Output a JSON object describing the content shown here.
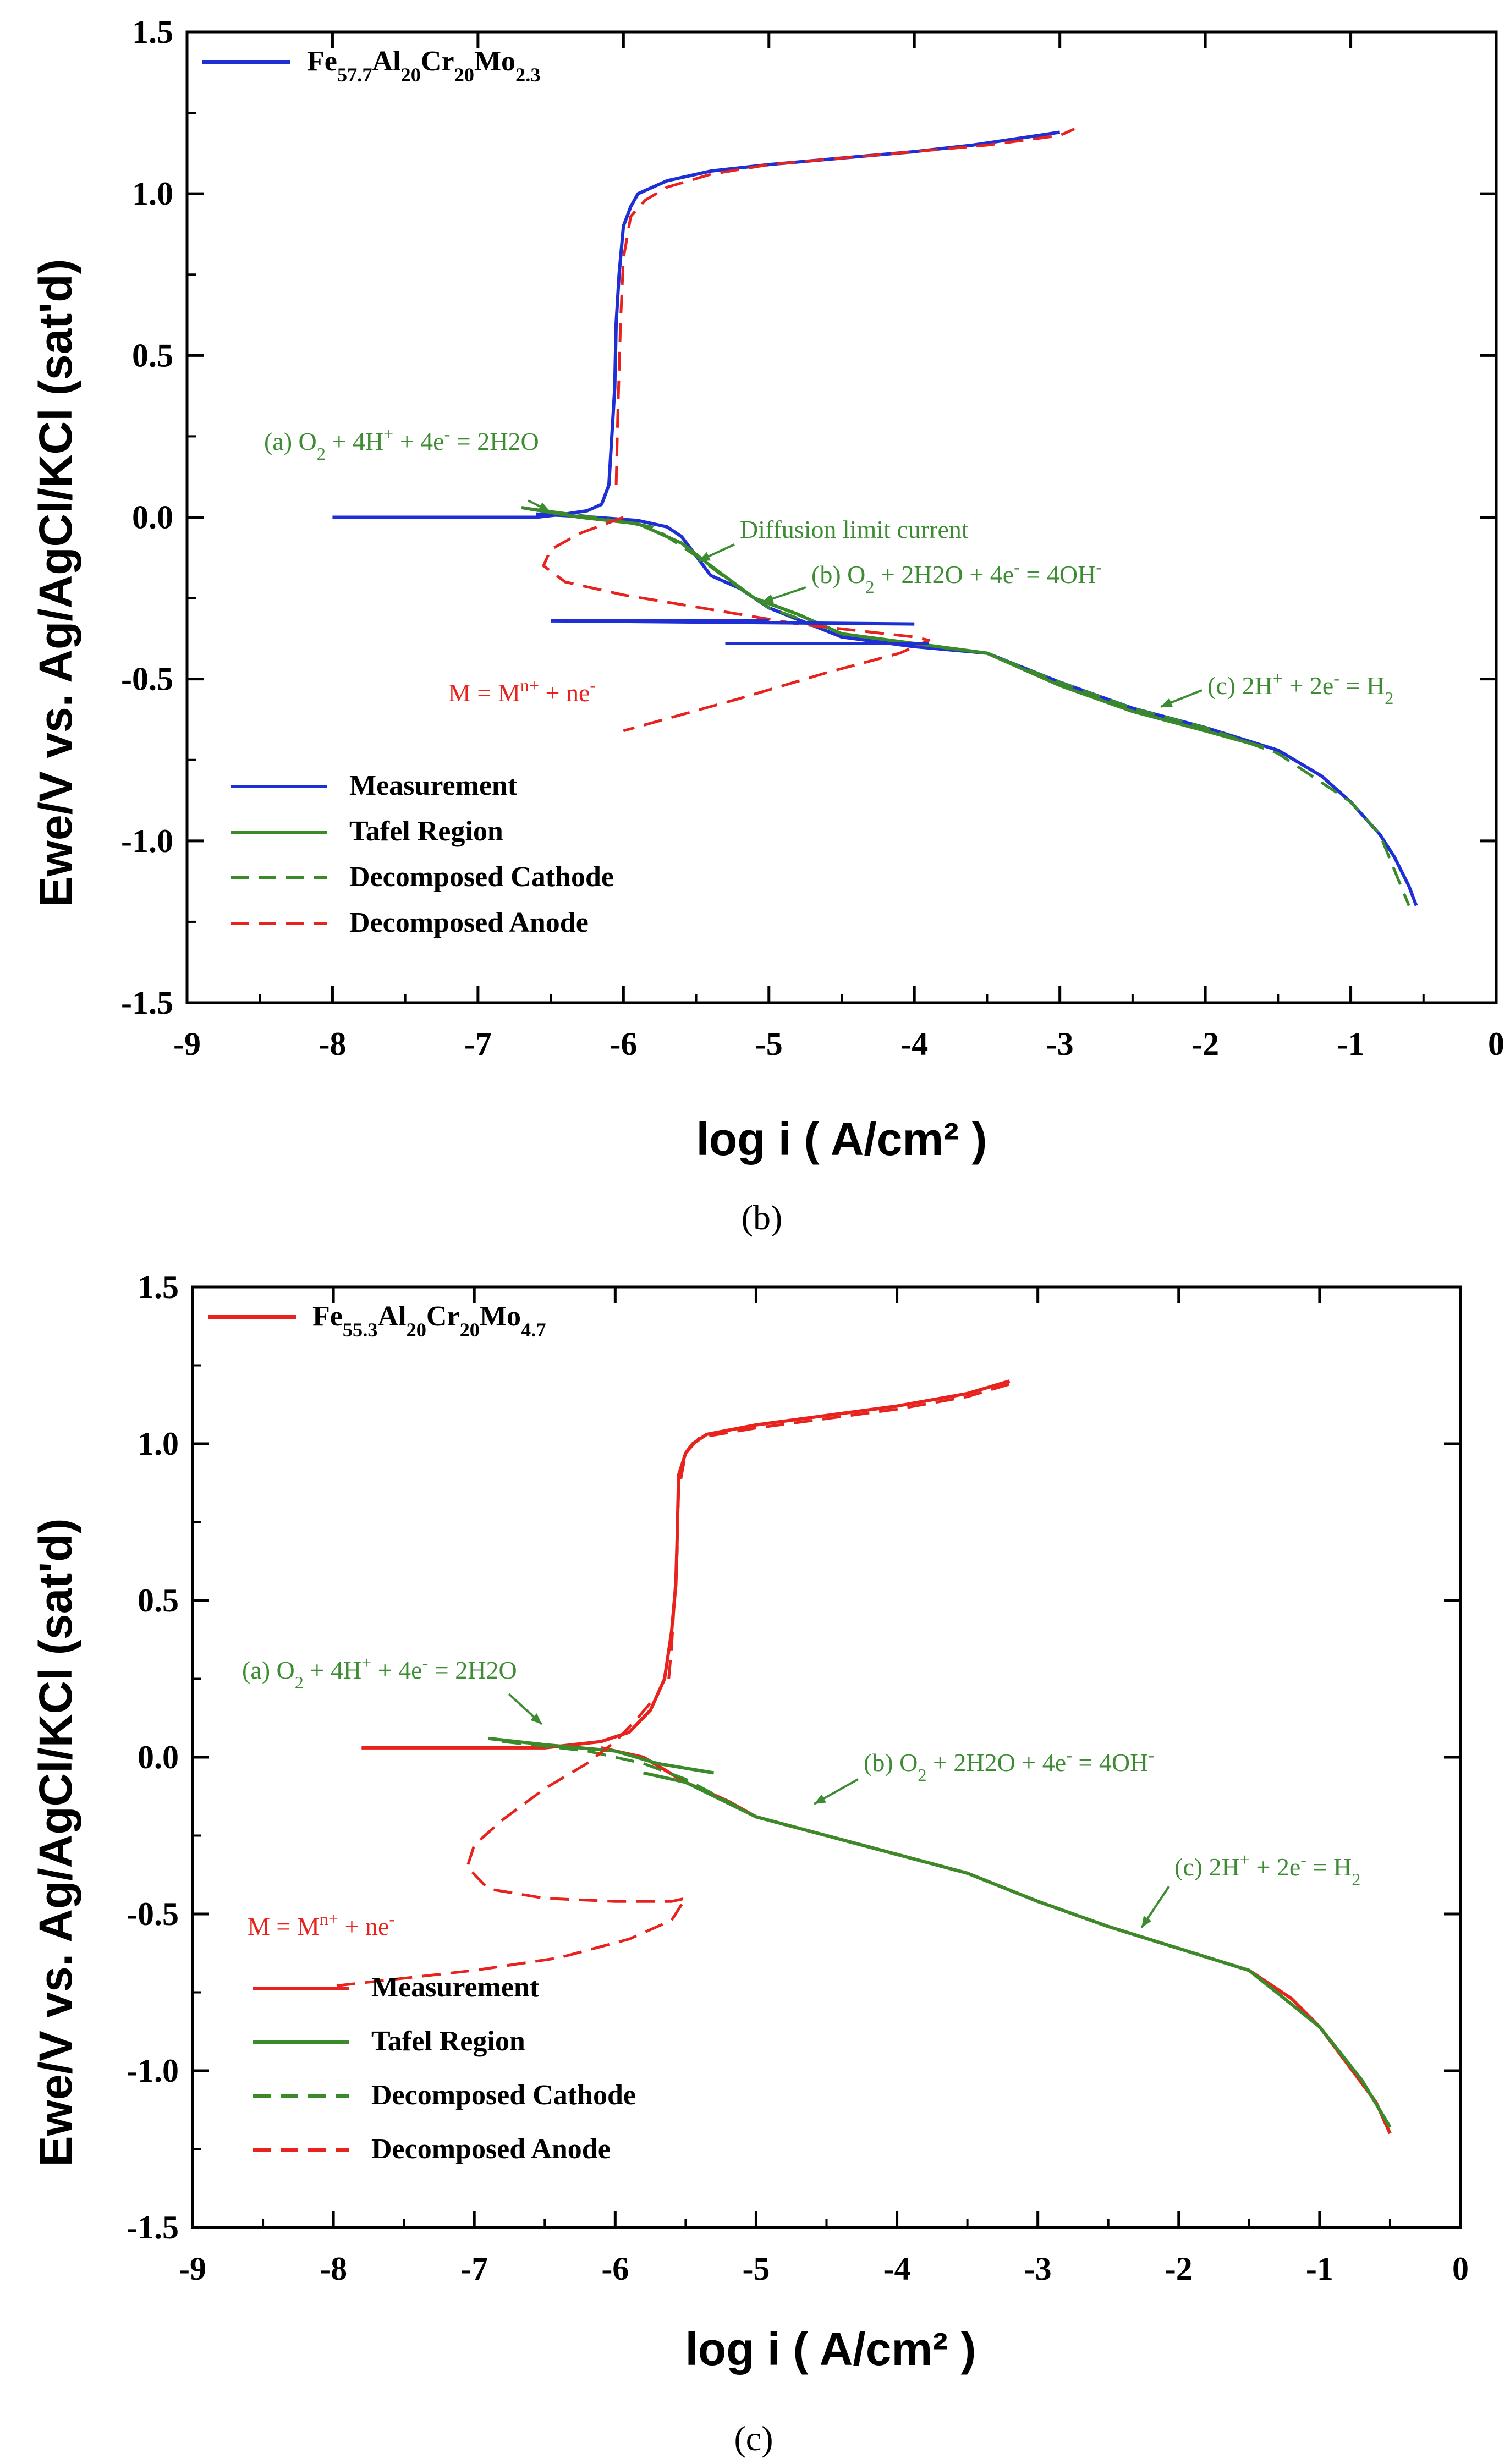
{
  "figure_captions": [
    "(b)",
    "(c)"
  ],
  "colors": {
    "measurement_b": "#1f2fd6",
    "measurement_c": "#e8221c",
    "tafel": "#3a8a2a",
    "cathode": "#3a8a2a",
    "anode": "#e8221c",
    "annotation_green": "#3d8c33",
    "annotation_red": "#e8221c"
  },
  "chart_data": [
    {
      "id": "b",
      "type": "line",
      "xlabel": "log i ( A/cm² )",
      "ylabel": "Ewe/V vs. Ag/AgCl/KCl (sat'd)",
      "xlim": [
        -9,
        0
      ],
      "ylim": [
        -1.5,
        1.5
      ],
      "xticks": [
        "-9",
        "-8",
        "-7",
        "-6",
        "-5",
        "-4",
        "-3",
        "-2",
        "-1",
        "0"
      ],
      "yticks": [
        "1.5",
        "1.0",
        "0.5",
        "0.0",
        "-0.5",
        "-1.0",
        "-1.5"
      ],
      "series_label": "Fe57.7Al20Cr20Mo2.3",
      "legend": [
        "Measurement",
        "Tafel Region",
        "Decomposed Cathode",
        "Decomposed Anode"
      ],
      "annotations": {
        "a": "(a) O2 + 4H+ + 4e- = 2H2O",
        "diffusion": "Diffusion limit current",
        "b": "(b) O2 + 2H2O + 4e- = 4OH-",
        "c": "(c) 2H+ + 2e- = H2",
        "m": "M = Mn+ + ne-"
      },
      "series": [
        {
          "name": "Measurement",
          "style": "solid",
          "color": "#1f2fd6",
          "x": [
            -8.0,
            -7.0,
            -6.6,
            -6.4,
            -6.25,
            -6.15,
            -6.1,
            -6.08,
            -6.06,
            -6.05,
            -6.03,
            -6.0,
            -5.95,
            -5.9,
            -5.7,
            -5.4,
            -5.0,
            -4.5,
            -4.0,
            -3.6,
            -3.3,
            -3.0,
            -2.5,
            -2.0,
            -1.5,
            -1.2,
            -1.0,
            -0.8,
            -0.7,
            -0.6,
            -0.55
          ],
          "y": [
            0.0,
            0.0,
            0.0,
            0.01,
            0.02,
            0.04,
            0.1,
            0.25,
            0.4,
            0.6,
            0.75,
            0.9,
            0.96,
            1.0,
            1.04,
            1.07,
            1.09,
            1.11,
            1.13,
            1.15,
            1.17,
            1.19,
            -0.6,
            -0.65,
            -0.72,
            -0.8,
            -0.88,
            -0.98,
            -1.05,
            -1.15,
            -1.2
          ]
        },
        {
          "name": "Measurement (cathodic branch)",
          "style": "solid",
          "color": "#1f2fd6",
          "x": [
            -6.6,
            -6.2,
            -5.9,
            -5.7,
            -5.6,
            -5.5,
            -5.4,
            -5.2,
            -5.0,
            -4.5,
            -4.0,
            -3.5,
            -3.0,
            -2.5,
            -2.0,
            -1.5,
            -1.2,
            -1.0,
            -0.8,
            -0.7,
            -0.6,
            -0.55
          ],
          "y": [
            0.01,
            0.0,
            -0.01,
            -0.03,
            -0.06,
            -0.12,
            -0.18,
            -0.22,
            -0.28,
            -0.37,
            -0.4,
            -0.42,
            -0.51,
            -0.59,
            -0.65,
            -0.72,
            -0.8,
            -0.88,
            -0.98,
            -1.05,
            -1.14,
            -1.2
          ]
        },
        {
          "name": "Tafel Region",
          "style": "solid",
          "color": "#3a8a2a",
          "x": [
            -6.7,
            -6.3,
            -5.9,
            -5.6,
            -5.4,
            -5.1,
            -4.8,
            -4.5,
            -4.0,
            -3.5,
            -3.0,
            -2.5,
            -2.0,
            -1.6
          ],
          "y": [
            0.03,
            0.0,
            -0.02,
            -0.08,
            -0.15,
            -0.25,
            -0.3,
            -0.36,
            -0.39,
            -0.42,
            -0.52,
            -0.6,
            -0.66,
            -0.71
          ]
        },
        {
          "name": "Decomposed Cathode",
          "style": "dashed",
          "color": "#3a8a2a",
          "x": [
            -6.7,
            -6.2,
            -5.8,
            -5.5,
            -5.2,
            -5.0,
            -4.5,
            -4.0,
            -3.5,
            -3.0,
            -2.5,
            -2.0,
            -1.5,
            -1.0,
            -0.8,
            -0.6
          ],
          "y": [
            0.03,
            0.0,
            -0.03,
            -0.12,
            -0.22,
            -0.28,
            -0.36,
            -0.39,
            -0.42,
            -0.51,
            -0.59,
            -0.65,
            -0.73,
            -0.88,
            -0.98,
            -1.2
          ]
        },
        {
          "name": "Decomposed Anode",
          "style": "dashed",
          "color": "#e8221c",
          "x": [
            -6.0,
            -6.3,
            -6.5,
            -6.55,
            -6.4,
            -6.0,
            -5.6,
            -5.2,
            -4.8,
            -4.4,
            -4.0,
            -3.9,
            -4.1,
            -4.6,
            -5.2,
            -6.0
          ],
          "y": [
            0.0,
            -0.05,
            -0.1,
            -0.15,
            -0.2,
            -0.24,
            -0.27,
            -0.3,
            -0.33,
            -0.35,
            -0.37,
            -0.38,
            -0.42,
            -0.48,
            -0.56,
            -0.66
          ]
        },
        {
          "name": "Decomposed Anode (passive)",
          "style": "dashed",
          "color": "#e8221c",
          "x": [
            -6.05,
            -6.04,
            -6.02,
            -6.0,
            -5.95,
            -5.85,
            -5.7,
            -5.4,
            -5.0,
            -4.5,
            -4.0,
            -3.5,
            -3.0,
            -2.9
          ],
          "y": [
            0.1,
            0.3,
            0.6,
            0.8,
            0.93,
            0.98,
            1.02,
            1.06,
            1.09,
            1.11,
            1.13,
            1.15,
            1.18,
            1.2
          ]
        }
      ]
    },
    {
      "id": "c",
      "type": "line",
      "xlabel": "log i ( A/cm² )",
      "ylabel": "Ewe/V vs. Ag/AgCl/KCl (sat'd)",
      "xlim": [
        -9,
        0
      ],
      "ylim": [
        -1.5,
        1.5
      ],
      "xticks": [
        "-9",
        "-8",
        "-7",
        "-6",
        "-5",
        "-4",
        "-3",
        "-2",
        "-1",
        "0"
      ],
      "yticks": [
        "1.5",
        "1.0",
        "0.5",
        "0.0",
        "-0.5",
        "-1.0",
        "-1.5"
      ],
      "series_label": "Fe55.3Al20Cr20Mo4.7",
      "legend": [
        "Measurement",
        "Tafel Region",
        "Decomposed Cathode",
        "Decomposed Anode"
      ],
      "annotations": {
        "a": "(a) O2 + 4H+ + 4e- = 2H2O",
        "b": "(b) O2 + 2H2O + 4e- = 4OH-",
        "c": "(c) 2H+ + 2e- = H2",
        "m": "M = Mn+ + ne-"
      },
      "series": [
        {
          "name": "Measurement",
          "style": "solid",
          "color": "#e8221c",
          "x": [
            -7.8,
            -7.0,
            -6.5,
            -6.1,
            -5.9,
            -5.75,
            -5.65,
            -5.6,
            -5.58,
            -5.57,
            -5.56,
            -5.55,
            -5.5,
            -5.45,
            -5.35,
            -5.0,
            -4.5,
            -4.0,
            -3.5,
            -3.2
          ],
          "y": [
            0.03,
            0.03,
            0.03,
            0.05,
            0.08,
            0.15,
            0.25,
            0.4,
            0.5,
            0.55,
            0.7,
            0.9,
            0.97,
            1.0,
            1.03,
            1.06,
            1.09,
            1.12,
            1.16,
            1.2
          ]
        },
        {
          "name": "Measurement (cathodic branch)",
          "style": "solid",
          "color": "#e8221c",
          "x": [
            -6.1,
            -5.8,
            -5.5,
            -5.2,
            -5.0,
            -4.5,
            -4.0,
            -3.5,
            -3.0,
            -2.5,
            -2.0,
            -1.5,
            -1.2,
            -1.0,
            -0.8,
            -0.6,
            -0.5
          ],
          "y": [
            0.03,
            0.0,
            -0.08,
            -0.14,
            -0.19,
            -0.25,
            -0.31,
            -0.37,
            -0.46,
            -0.54,
            -0.61,
            -0.68,
            -0.77,
            -0.86,
            -0.98,
            -1.1,
            -1.2
          ]
        },
        {
          "name": "Tafel Region",
          "style": "solid",
          "color": "#3a8a2a",
          "x": [
            -6.9,
            -6.5,
            -6.0,
            -5.7,
            -5.3
          ],
          "y": [
            0.06,
            0.04,
            0.02,
            -0.02,
            -0.05
          ]
        },
        {
          "name": "Tafel Region (cathodic)",
          "style": "solid",
          "color": "#3a8a2a",
          "x": [
            -5.8,
            -5.5,
            -5.0,
            -4.5,
            -4.0,
            -3.5,
            -3.0,
            -2.5,
            -2.0,
            -1.5,
            -1.0,
            -0.7,
            -0.5
          ],
          "y": [
            -0.05,
            -0.08,
            -0.19,
            -0.25,
            -0.31,
            -0.37,
            -0.46,
            -0.54,
            -0.61,
            -0.68,
            -0.86,
            -1.03,
            -1.18
          ]
        },
        {
          "name": "Decomposed Cathode",
          "style": "dashed",
          "color": "#3a8a2a",
          "x": [
            -6.8,
            -6.2,
            -5.8,
            -5.5,
            -5.0,
            -4.5,
            -4.0,
            -3.5,
            -3.0,
            -2.5,
            -2.0,
            -1.5,
            -1.0,
            -0.7,
            -0.5
          ],
          "y": [
            0.05,
            0.02,
            -0.02,
            -0.07,
            -0.19,
            -0.25,
            -0.31,
            -0.37,
            -0.46,
            -0.54,
            -0.61,
            -0.68,
            -0.86,
            -1.03,
            -1.18
          ]
        },
        {
          "name": "Decomposed Anode",
          "style": "dashed",
          "color": "#e8221c",
          "x": [
            -5.65,
            -5.7,
            -5.85,
            -6.0,
            -6.2,
            -6.5,
            -6.8,
            -7.0,
            -7.05,
            -6.9,
            -6.5,
            -6.0,
            -5.6,
            -5.5,
            -5.6,
            -5.9,
            -6.4,
            -7.0,
            -7.6,
            -8.0
          ],
          "y": [
            0.25,
            0.2,
            0.12,
            0.05,
            -0.02,
            -0.1,
            -0.2,
            -0.28,
            -0.35,
            -0.42,
            -0.45,
            -0.46,
            -0.46,
            -0.45,
            -0.52,
            -0.58,
            -0.64,
            -0.68,
            -0.71,
            -0.73
          ]
        },
        {
          "name": "Decomposed Anode (passive)",
          "style": "dashed",
          "color": "#e8221c",
          "x": [
            -5.62,
            -5.6,
            -5.58,
            -5.56,
            -5.55,
            -5.5,
            -5.4,
            -5.0,
            -4.5,
            -4.0,
            -3.5,
            -3.2
          ],
          "y": [
            0.25,
            0.35,
            0.5,
            0.65,
            0.85,
            0.97,
            1.02,
            1.05,
            1.08,
            1.11,
            1.15,
            1.19
          ]
        }
      ]
    }
  ]
}
